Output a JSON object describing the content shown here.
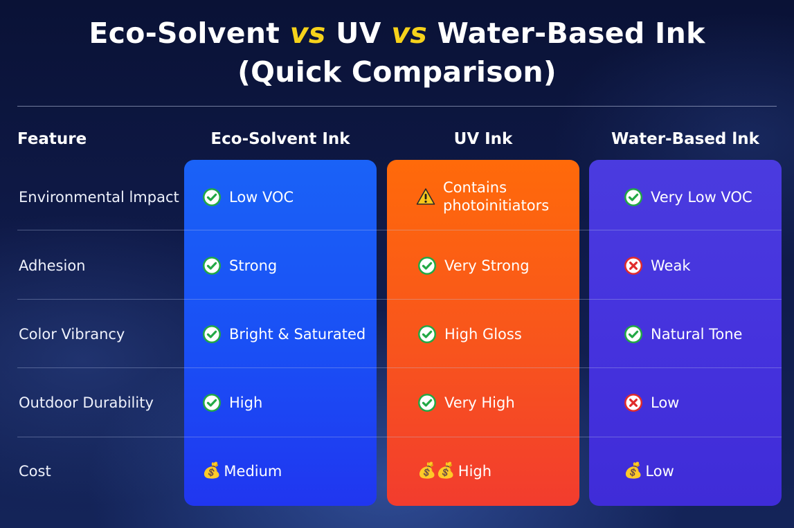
{
  "title": {
    "part1": "Eco-Solvent ",
    "vs1": "vs",
    "part2": " UV ",
    "vs2": "vs",
    "part3": " Water-Based Ink",
    "line2": "(Quick Comparison)"
  },
  "headers": {
    "feature": "Feature",
    "eco": "Eco-Solvent Ink",
    "uv": "UV Ink",
    "water": "Water-Based lnk"
  },
  "colors": {
    "eco_card": "#1a55f6",
    "uv_card": "#f8521f",
    "water_card": "#4535dd",
    "vs_accent": "#f6d21b"
  },
  "rows": [
    {
      "feature": "Environmental lmpact",
      "eco": {
        "icon": "check-icon",
        "text": "Low VOC"
      },
      "uv": {
        "icon": "warning-icon",
        "line1": "Contains",
        "line2": "photoinitiators"
      },
      "water": {
        "icon": "check-icon",
        "text": "Very Low VOC"
      }
    },
    {
      "feature": "Adhesion",
      "eco": {
        "icon": "check-icon",
        "text": "Strong"
      },
      "uv": {
        "icon": "check-icon",
        "text": "Very Strong"
      },
      "water": {
        "icon": "cross-icon",
        "text": "Weak"
      }
    },
    {
      "feature": "Color Vibrancy",
      "eco": {
        "icon": "check-icon",
        "text": "Bright & Saturated"
      },
      "uv": {
        "icon": "check-icon",
        "text": "High Gloss"
      },
      "water": {
        "icon": "check-icon",
        "text": "Natural Tone"
      }
    },
    {
      "feature": "Outdoor Durability",
      "eco": {
        "icon": "check-icon",
        "text": "High"
      },
      "uv": {
        "icon": "check-icon",
        "text": "Very High"
      },
      "water": {
        "icon": "cross-icon",
        "text": "Low"
      }
    },
    {
      "feature": "Cost",
      "eco": {
        "icon": "money-bag-icon",
        "bags": "💰",
        "text": "Medium"
      },
      "uv": {
        "icon": "money-bag-icon",
        "bags": "💰💰",
        "text": "High"
      },
      "water": {
        "icon": "money-bag-icon",
        "bags": "💰",
        "text": "Low"
      }
    }
  ]
}
